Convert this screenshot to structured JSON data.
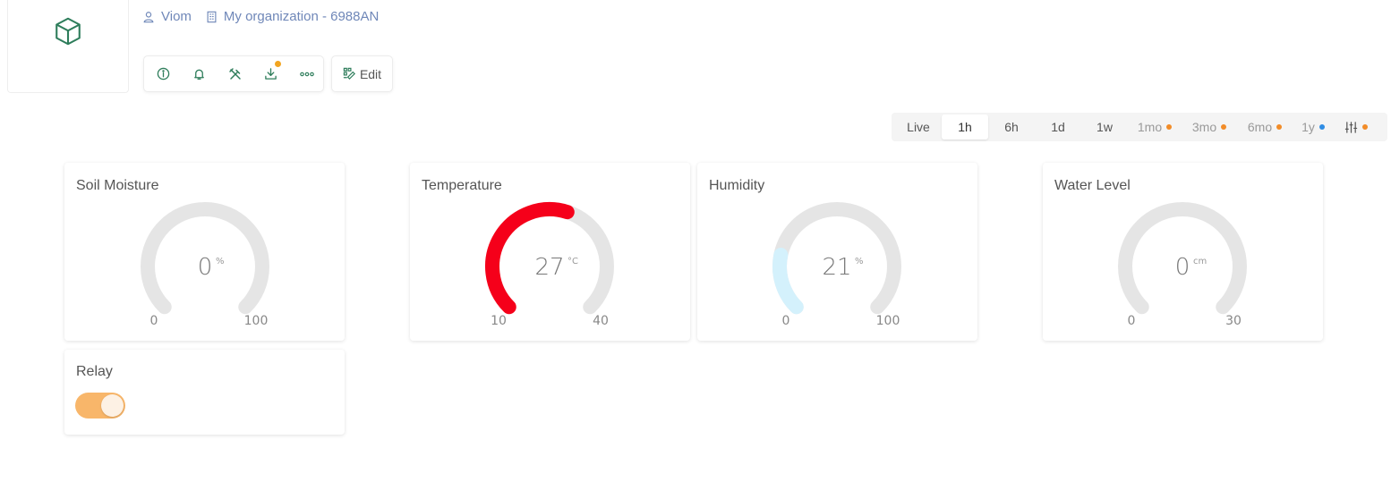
{
  "header": {
    "user_name": "Viom",
    "organization": "My organization - 6988AN",
    "logo_icon": "cube-icon"
  },
  "toolbar": {
    "buttons": [
      "info-icon",
      "bell-icon",
      "tools-icon",
      "download-icon",
      "more-icon"
    ],
    "edit_label": "Edit"
  },
  "time_range": {
    "options": [
      {
        "label": "Live",
        "active": false
      },
      {
        "label": "1h",
        "active": true
      },
      {
        "label": "6h",
        "active": false
      },
      {
        "label": "1d",
        "active": false
      },
      {
        "label": "1w",
        "active": false
      },
      {
        "label": "1mo",
        "dot": "#f28c28"
      },
      {
        "label": "3mo",
        "dot": "#f28c28"
      },
      {
        "label": "6mo",
        "dot": "#f28c28"
      },
      {
        "label": "1y",
        "dot": "#2f8de4"
      }
    ],
    "settings_dot": "#f28c28"
  },
  "widgets": {
    "soil": {
      "title": "Soil Moisture",
      "value": 0,
      "value_text": "0",
      "unit": "%",
      "min": 0,
      "max": 100,
      "min_text": "0",
      "max_text": "100",
      "color": "#e5e5e5"
    },
    "temperature": {
      "title": "Temperature",
      "value": 27,
      "value_text": "27",
      "unit": "°C",
      "min": 10,
      "max": 40,
      "min_text": "10",
      "max_text": "40",
      "color": "#f5001a"
    },
    "humidity": {
      "title": "Humidity",
      "value": 21,
      "value_text": "21",
      "unit": "%",
      "min": 0,
      "max": 100,
      "min_text": "0",
      "max_text": "100",
      "color": "#d4f1fc"
    },
    "water": {
      "title": "Water Level",
      "value": 0,
      "value_text": "0",
      "unit": "cm",
      "min": 0,
      "max": 30,
      "min_text": "0",
      "max_text": "30",
      "color": "#e5e5e5"
    },
    "relay": {
      "title": "Relay",
      "state": true
    }
  },
  "colors": {
    "brand_green": "#2e7d5b",
    "link_blue": "#6f87b8",
    "toggle_on": "#f8b66a",
    "gauge_track": "#e5e5e5"
  }
}
